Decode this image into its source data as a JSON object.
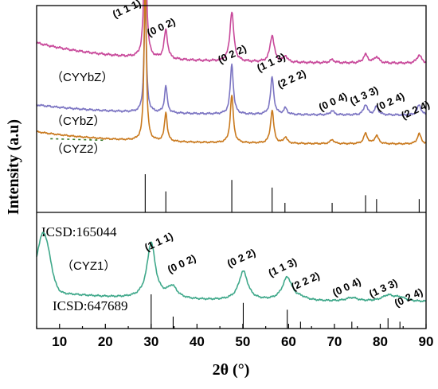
{
  "chart_data": {
    "type": "line",
    "xlabel": "2θ (°)",
    "ylabel": "Intensity (a.u)",
    "xlim": [
      5,
      90
    ],
    "xticks": [
      10,
      20,
      30,
      40,
      50,
      60,
      70,
      80,
      90
    ],
    "grid": false,
    "top_panel": {
      "series": [
        {
          "name": "（CYYbZ）",
          "color": "#c8489a",
          "baseline": 0.72,
          "drift": 0.1,
          "noise": 0.006,
          "peaks": [
            [
              28.7,
              0.62,
              0.35
            ],
            [
              33.2,
              0.14,
              0.45
            ],
            [
              47.6,
              0.24,
              0.5
            ],
            [
              56.4,
              0.13,
              0.55
            ],
            [
              59.3,
              0.03,
              0.5
            ],
            [
              69.5,
              0.015,
              0.6
            ],
            [
              76.8,
              0.04,
              0.6
            ],
            [
              79.2,
              0.03,
              0.6
            ],
            [
              88.5,
              0.04,
              0.6
            ]
          ]
        },
        {
          "name": "（CYbZ）",
          "color": "#7b74c2",
          "baseline": 0.47,
          "drift": 0.05,
          "noise": 0.005,
          "peaks": [
            [
              28.7,
              0.55,
              0.3
            ],
            [
              33.2,
              0.13,
              0.35
            ],
            [
              47.6,
              0.24,
              0.4
            ],
            [
              56.4,
              0.18,
              0.42
            ],
            [
              59.3,
              0.03,
              0.45
            ],
            [
              69.5,
              0.02,
              0.5
            ],
            [
              76.8,
              0.05,
              0.5
            ],
            [
              79.2,
              0.04,
              0.5
            ],
            [
              88.5,
              0.05,
              0.5
            ]
          ]
        },
        {
          "name": "（CYZ2）",
          "color": "#c9791d",
          "baseline": 0.33,
          "drift": 0.06,
          "noise": 0.004,
          "peaks": [
            [
              28.7,
              0.8,
              0.28
            ],
            [
              33.2,
              0.14,
              0.35
            ],
            [
              47.6,
              0.23,
              0.4
            ],
            [
              56.4,
              0.16,
              0.42
            ],
            [
              59.3,
              0.03,
              0.45
            ],
            [
              69.5,
              0.02,
              0.5
            ],
            [
              76.8,
              0.05,
              0.5
            ],
            [
              79.2,
              0.04,
              0.5
            ],
            [
              88.5,
              0.05,
              0.5
            ]
          ]
        }
      ],
      "green_dash": {
        "x": [
          8,
          20
        ],
        "color": "#3a7a2a"
      },
      "reference": {
        "name": "ICSD:165044",
        "positions": [
          28.7,
          33.2,
          47.6,
          56.4,
          59.2,
          69.5,
          76.8,
          79.2,
          88.5
        ],
        "heights": [
          1.0,
          0.55,
          0.85,
          0.65,
          0.25,
          0.25,
          0.45,
          0.35,
          0.35
        ]
      },
      "hkl_labels": [
        {
          "text": "(1 1 1)",
          "x": 25.0,
          "level": 0.97
        },
        {
          "text": "(0 0 2)",
          "x": 32.5,
          "level": 0.88
        },
        {
          "text": "(0 2 2)",
          "x": 48.0,
          "level": 0.75
        },
        {
          "text": "(1 1 3)",
          "x": 56.5,
          "level": 0.71
        },
        {
          "text": "(2 2 2)",
          "x": 61.0,
          "level": 0.63
        },
        {
          "text": "(0 0 4)",
          "x": 70.0,
          "level": 0.52
        },
        {
          "text": "(1 3 3)",
          "x": 76.8,
          "level": 0.55
        },
        {
          "text": "(0 2 4)",
          "x": 82.5,
          "level": 0.52
        },
        {
          "text": "(2 2 4)",
          "x": 88.0,
          "level": 0.48
        }
      ]
    },
    "bottom_panel": {
      "series": [
        {
          "name": "（CYZ1）",
          "color": "#3fa88a",
          "baseline": 0.23,
          "drift": 0.1,
          "noise": 0.008,
          "broad": [
            [
              6.5,
              0.5,
              2.0
            ]
          ],
          "peaks": [
            [
              30.0,
              0.48,
              1.1
            ],
            [
              34.6,
              0.1,
              1.3
            ],
            [
              50.1,
              0.25,
              1.2
            ],
            [
              59.7,
              0.2,
              1.3
            ],
            [
              62.8,
              0.02,
              1.5
            ],
            [
              73.8,
              0.03,
              1.5
            ],
            [
              81.7,
              0.05,
              1.6
            ],
            [
              84.3,
              0.03,
              1.5
            ]
          ]
        }
      ],
      "reference": {
        "name": "ICSD:647689",
        "positions": [
          30.0,
          34.8,
          50.1,
          59.7,
          62.6,
          73.8,
          81.7,
          84.3
        ],
        "heights": [
          1.0,
          0.35,
          0.75,
          0.55,
          0.2,
          0.2,
          0.3,
          0.2
        ]
      },
      "hkl_labels": [
        {
          "text": "(1 1 1)",
          "x": 32.0,
          "level": 0.72
        },
        {
          "text": "(0 0 2)",
          "x": 37.0,
          "level": 0.53
        },
        {
          "text": "(0 2 2)",
          "x": 50.0,
          "level": 0.58
        },
        {
          "text": "(1 1 3)",
          "x": 59.0,
          "level": 0.5
        },
        {
          "text": "(2 2 2)",
          "x": 64.0,
          "level": 0.38
        },
        {
          "text": "(0 0 4)",
          "x": 73.0,
          "level": 0.33
        },
        {
          "text": "(1 3 3)",
          "x": 81.0,
          "level": 0.32
        },
        {
          "text": "(0 2 4)",
          "x": 86.5,
          "level": 0.24
        }
      ]
    }
  }
}
